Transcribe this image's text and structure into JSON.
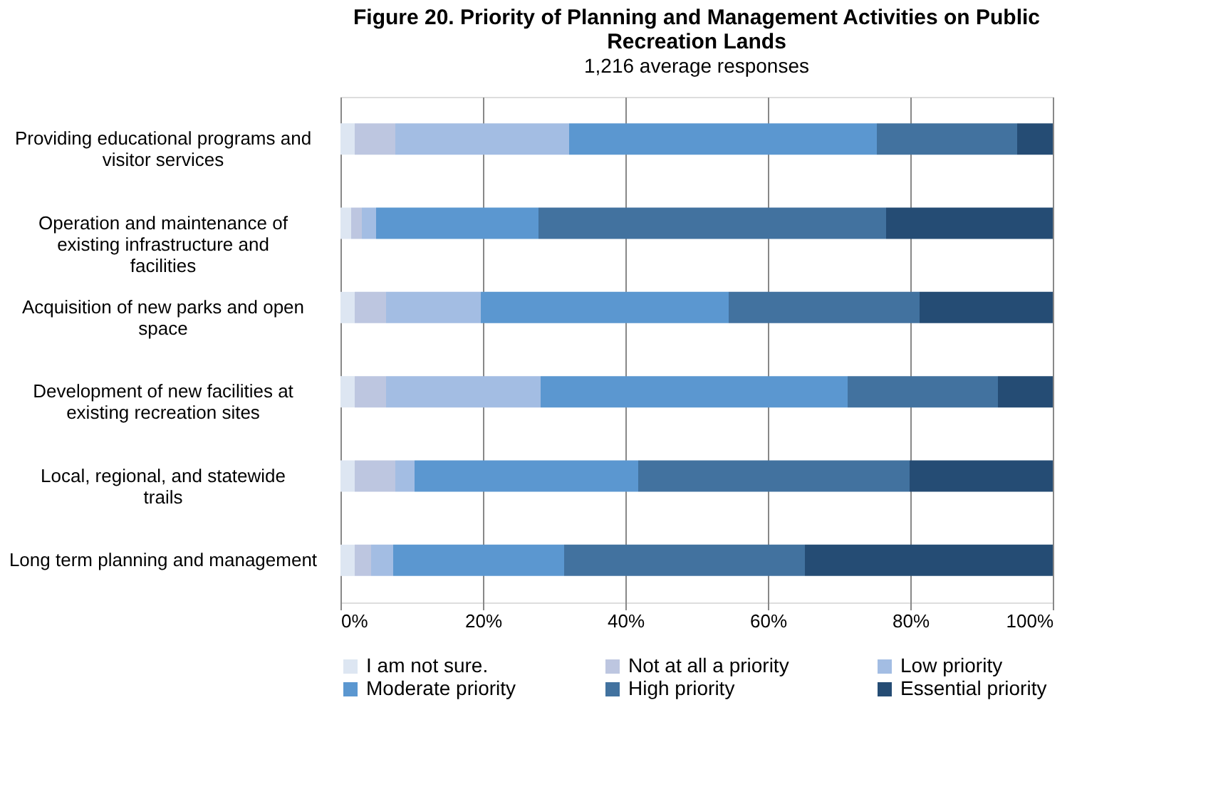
{
  "chart_data": {
    "type": "bar",
    "orientation": "horizontal",
    "stacked": true,
    "title": "Figure 20. Priority of Planning and Management Activities on Public Recreation Lands",
    "subtitle": "1,216 average responses",
    "categories": [
      "Providing educational programs and visitor services",
      "Operation and maintenance of existing infrastructure and facilities",
      "Acquisition of new parks and open space",
      "Development of new facilities at existing recreation sites",
      "Local, regional, and statewide trails",
      "Long term planning and management"
    ],
    "series": [
      {
        "name": "I am not sure.",
        "color": "#dde6f2",
        "values": [
          2,
          1.5,
          2,
          2,
          2,
          2
        ]
      },
      {
        "name": "Not at all a priority",
        "color": "#bdc6e0",
        "values": [
          5.7,
          1.5,
          4.4,
          4.4,
          5.7,
          2.3
        ]
      },
      {
        "name": "Low priority",
        "color": "#a3bde3",
        "values": [
          24.4,
          2,
          13.3,
          21.7,
          2.7,
          3.1
        ]
      },
      {
        "name": "Moderate priority",
        "color": "#5b97d0",
        "values": [
          43.2,
          22.8,
          34.8,
          43.1,
          31.4,
          24
        ]
      },
      {
        "name": "High priority",
        "color": "#42729f",
        "values": [
          19.7,
          48.8,
          26.8,
          21.1,
          38.1,
          33.8
        ]
      },
      {
        "name": "Essential priority",
        "color": "#254c74",
        "values": [
          5,
          23.4,
          18.7,
          7.7,
          20.1,
          34.8
        ]
      }
    ],
    "xlim": [
      0,
      100
    ],
    "xticks": [
      {
        "value": 0,
        "label": "0%"
      },
      {
        "value": 20,
        "label": "20%"
      },
      {
        "value": 40,
        "label": "40%"
      },
      {
        "value": 60,
        "label": "60%"
      },
      {
        "value": 80,
        "label": "80%"
      },
      {
        "value": 100,
        "label": "100%"
      }
    ],
    "grid": "x",
    "legend": "bottom"
  }
}
